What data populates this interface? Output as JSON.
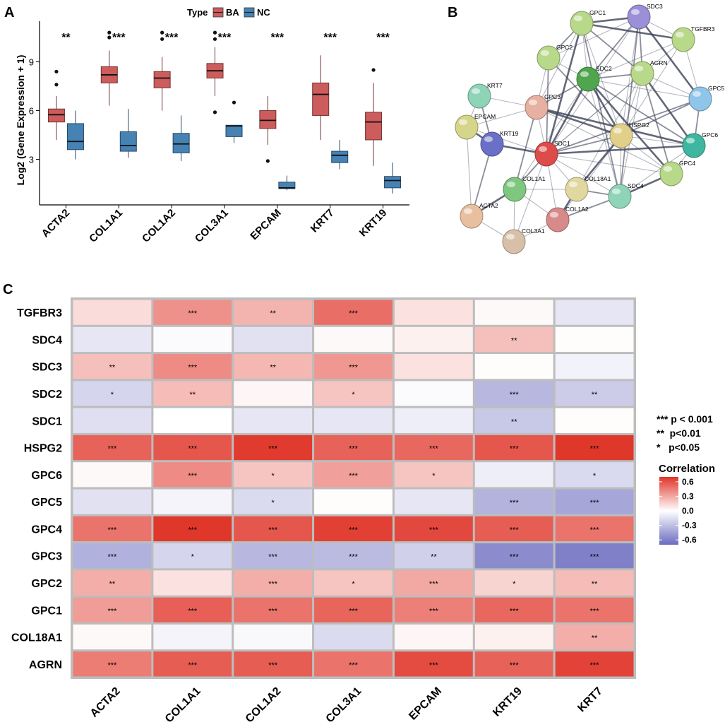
{
  "panels": {
    "a": "A",
    "b": "B",
    "c": "C"
  },
  "chart_data": [
    {
      "type": "boxplot",
      "panel": "A",
      "ylabel": "Log2 (Gene Expression + 1)",
      "ylim": [
        0.2,
        11.5
      ],
      "yticks": [
        3,
        6,
        9
      ],
      "legend": {
        "title": "Type",
        "items": [
          {
            "name": "BA",
            "color": "#cd5c5c"
          },
          {
            "name": "NC",
            "color": "#4682b4"
          }
        ]
      },
      "categories": [
        "ACTA2",
        "COL1A1",
        "COL1A2",
        "COL3A1",
        "EPCAM",
        "KRT7",
        "KRT19"
      ],
      "significance": [
        "**",
        "***",
        "***",
        "***",
        "***",
        "***",
        "***"
      ],
      "series": [
        {
          "name": "BA",
          "boxes": [
            {
              "min": 4.2,
              "q1": 5.3,
              "median": 5.75,
              "q3": 6.1,
              "max": 6.9,
              "outliers": [
                7.6,
                8.4
              ]
            },
            {
              "min": 6.3,
              "q1": 7.7,
              "median": 8.2,
              "q3": 8.7,
              "max": 9.7,
              "outliers": [
                10.5,
                10.8
              ]
            },
            {
              "min": 6.0,
              "q1": 7.4,
              "median": 8.0,
              "q3": 8.4,
              "max": 9.3,
              "outliers": [
                10.4,
                10.8
              ]
            },
            {
              "min": 6.9,
              "q1": 8.0,
              "median": 8.45,
              "q3": 8.9,
              "max": 9.9,
              "outliers": [
                5.9,
                10.4,
                10.8
              ]
            },
            {
              "min": 3.9,
              "q1": 4.9,
              "median": 5.4,
              "q3": 6.0,
              "max": 6.9,
              "outliers": [
                2.9
              ]
            },
            {
              "min": 4.2,
              "q1": 5.7,
              "median": 7.0,
              "q3": 7.7,
              "max": 9.4,
              "outliers": []
            },
            {
              "min": 2.6,
              "q1": 4.2,
              "median": 5.3,
              "q3": 5.9,
              "max": 7.7,
              "outliers": [
                8.5
              ]
            }
          ]
        },
        {
          "name": "NC",
          "boxes": [
            {
              "min": 3.0,
              "q1": 3.6,
              "median": 4.1,
              "q3": 5.2,
              "max": 6.0,
              "outliers": []
            },
            {
              "min": 3.1,
              "q1": 3.5,
              "median": 3.85,
              "q3": 4.7,
              "max": 6.1,
              "outliers": []
            },
            {
              "min": 2.9,
              "q1": 3.4,
              "median": 3.95,
              "q3": 4.6,
              "max": 5.7,
              "outliers": []
            },
            {
              "min": 4.0,
              "q1": 4.4,
              "median": 5.05,
              "q3": 5.1,
              "max": 5.1,
              "outliers": [
                6.5
              ]
            },
            {
              "min": 1.1,
              "q1": 1.2,
              "median": 1.25,
              "q3": 1.6,
              "max": 2.0,
              "outliers": []
            },
            {
              "min": 2.4,
              "q1": 2.8,
              "median": 3.25,
              "q3": 3.5,
              "max": 4.2,
              "outliers": []
            },
            {
              "min": 0.9,
              "q1": 1.25,
              "median": 1.7,
              "q3": 1.95,
              "max": 2.8,
              "outliers": []
            }
          ]
        }
      ]
    },
    {
      "type": "network",
      "panel": "B",
      "nodes": [
        {
          "id": "SDC3",
          "color": "#9b8fd8"
        },
        {
          "id": "GPC1",
          "color": "#b8d98a"
        },
        {
          "id": "TGFBR3",
          "color": "#b8d98a"
        },
        {
          "id": "GPC2",
          "color": "#b8d98a"
        },
        {
          "id": "SDC2",
          "color": "#4fa64f"
        },
        {
          "id": "AGRN",
          "color": "#b8d98a"
        },
        {
          "id": "GPC5",
          "color": "#8fc5e8"
        },
        {
          "id": "KRT7",
          "color": "#8fd3b8"
        },
        {
          "id": "GPC3",
          "color": "#e8b0a0"
        },
        {
          "id": "EPCAM",
          "color": "#d6d68a"
        },
        {
          "id": "HSPG2",
          "color": "#e0d08a"
        },
        {
          "id": "GPC6",
          "color": "#3fb6a0"
        },
        {
          "id": "KRT19",
          "color": "#6a70c8"
        },
        {
          "id": "SDC1",
          "color": "#dd4b4b"
        },
        {
          "id": "GPC4",
          "color": "#b8d98a"
        },
        {
          "id": "COL1A1",
          "color": "#7fc67f"
        },
        {
          "id": "COL18A1",
          "color": "#e0d8a0"
        },
        {
          "id": "SDC4",
          "color": "#8fd3b8"
        },
        {
          "id": "ACTA2",
          "color": "#e8c0a0"
        },
        {
          "id": "COL1A2",
          "color": "#d88a8a"
        },
        {
          "id": "COL3A1",
          "color": "#d8c0a8"
        }
      ],
      "edges": [
        [
          "SDC1",
          "SDC2"
        ],
        [
          "SDC1",
          "SDC3"
        ],
        [
          "SDC1",
          "SDC4"
        ],
        [
          "SDC1",
          "HSPG2"
        ],
        [
          "SDC1",
          "AGRN"
        ],
        [
          "SDC1",
          "GPC1"
        ],
        [
          "SDC1",
          "GPC2"
        ],
        [
          "SDC1",
          "GPC3"
        ],
        [
          "SDC1",
          "GPC4"
        ],
        [
          "SDC1",
          "GPC5"
        ],
        [
          "SDC1",
          "GPC6"
        ],
        [
          "SDC1",
          "TGFBR3"
        ],
        [
          "SDC1",
          "COL1A1"
        ],
        [
          "SDC1",
          "COL1A2"
        ],
        [
          "SDC1",
          "COL18A1"
        ],
        [
          "SDC1",
          "KRT19"
        ],
        [
          "SDC1",
          "EPCAM"
        ],
        [
          "SDC1",
          "COL3A1"
        ],
        [
          "SDC2",
          "SDC3"
        ],
        [
          "SDC2",
          "SDC4"
        ],
        [
          "SDC2",
          "HSPG2"
        ],
        [
          "SDC2",
          "AGRN"
        ],
        [
          "SDC2",
          "GPC1"
        ],
        [
          "SDC2",
          "GPC2"
        ],
        [
          "SDC2",
          "GPC3"
        ],
        [
          "SDC2",
          "GPC4"
        ],
        [
          "SDC2",
          "GPC5"
        ],
        [
          "SDC2",
          "GPC6"
        ],
        [
          "SDC2",
          "TGFBR3"
        ],
        [
          "SDC2",
          "COL1A1"
        ],
        [
          "SDC3",
          "GPC1"
        ],
        [
          "SDC3",
          "GPC2"
        ],
        [
          "SDC3",
          "HSPG2"
        ],
        [
          "SDC3",
          "AGRN"
        ],
        [
          "SDC3",
          "TGFBR3"
        ],
        [
          "SDC3",
          "GPC5"
        ],
        [
          "SDC3",
          "SDC4"
        ],
        [
          "HSPG2",
          "AGRN"
        ],
        [
          "HSPG2",
          "GPC1"
        ],
        [
          "HSPG2",
          "GPC2"
        ],
        [
          "HSPG2",
          "GPC3"
        ],
        [
          "HSPG2",
          "GPC4"
        ],
        [
          "HSPG2",
          "GPC5"
        ],
        [
          "HSPG2",
          "GPC6"
        ],
        [
          "HSPG2",
          "SDC4"
        ],
        [
          "HSPG2",
          "COL18A1"
        ],
        [
          "HSPG2",
          "COL1A2"
        ],
        [
          "HSPG2",
          "TGFBR3"
        ],
        [
          "AGRN",
          "GPC1"
        ],
        [
          "AGRN",
          "GPC5"
        ],
        [
          "AGRN",
          "GPC6"
        ],
        [
          "AGRN",
          "GPC4"
        ],
        [
          "AGRN",
          "SDC4"
        ],
        [
          "AGRN",
          "COL18A1"
        ],
        [
          "GPC1",
          "GPC2"
        ],
        [
          "GPC1",
          "TGFBR3"
        ],
        [
          "GPC1",
          "GPC3"
        ],
        [
          "GPC1",
          "SDC4"
        ],
        [
          "GPC2",
          "GPC3"
        ],
        [
          "GPC3",
          "GPC4"
        ],
        [
          "GPC3",
          "GPC6"
        ],
        [
          "GPC3",
          "KRT7"
        ],
        [
          "GPC3",
          "EPCAM"
        ],
        [
          "GPC3",
          "COL1A1"
        ],
        [
          "GPC4",
          "GPC6"
        ],
        [
          "GPC4",
          "SDC4"
        ],
        [
          "GPC5",
          "GPC6"
        ],
        [
          "GPC6",
          "SDC4"
        ],
        [
          "TGFBR3",
          "GPC5"
        ],
        [
          "COL18A1",
          "SDC4"
        ],
        [
          "COL18A1",
          "COL1A2"
        ],
        [
          "COL18A1",
          "COL1A1"
        ],
        [
          "SDC4",
          "COL1A2"
        ],
        [
          "COL1A1",
          "COL1A2"
        ],
        [
          "COL1A1",
          "COL3A1"
        ],
        [
          "COL1A1",
          "ACTA2"
        ],
        [
          "COL1A2",
          "COL3A1"
        ],
        [
          "COL3A1",
          "ACTA2"
        ],
        [
          "KRT7",
          "KRT19"
        ],
        [
          "KRT7",
          "EPCAM"
        ],
        [
          "KRT19",
          "EPCAM"
        ],
        [
          "KRT19",
          "ACTA2"
        ],
        [
          "EPCAM",
          "ACTA2"
        ]
      ]
    },
    {
      "type": "heatmap",
      "panel": "C",
      "rows": [
        "TGFBR3",
        "SDC4",
        "SDC3",
        "SDC2",
        "SDC1",
        "HSPG2",
        "GPC6",
        "GPC5",
        "GPC4",
        "GPC3",
        "GPC2",
        "GPC1",
        "COL18A1",
        "AGRN"
      ],
      "columns": [
        "ACTA2",
        "COL1A1",
        "COL1A2",
        "COL3A1",
        "EPCAM",
        "KRT19",
        "KRT7"
      ],
      "values": [
        [
          0.12,
          0.38,
          0.26,
          0.5,
          0.1,
          0.02,
          -0.12
        ],
        [
          -0.12,
          -0.02,
          -0.14,
          0.02,
          0.05,
          0.22,
          0.01
        ],
        [
          0.22,
          0.4,
          0.25,
          0.36,
          0.1,
          0.01,
          -0.06
        ],
        [
          -0.2,
          0.23,
          0.03,
          0.2,
          -0.02,
          -0.34,
          -0.24
        ],
        [
          -0.15,
          0.0,
          -0.12,
          -0.12,
          -0.08,
          -0.26,
          0.01
        ],
        [
          0.54,
          0.58,
          0.68,
          0.54,
          0.52,
          0.58,
          0.69
        ],
        [
          0.02,
          0.4,
          0.2,
          0.33,
          0.2,
          -0.08,
          -0.18
        ],
        [
          -0.14,
          -0.05,
          -0.17,
          0.01,
          -0.12,
          -0.36,
          -0.42
        ],
        [
          0.48,
          0.69,
          0.58,
          0.66,
          0.63,
          0.56,
          0.48
        ],
        [
          -0.37,
          -0.2,
          -0.34,
          -0.32,
          -0.22,
          -0.55,
          -0.6
        ],
        [
          0.28,
          0.1,
          0.28,
          0.2,
          0.3,
          0.15,
          0.23
        ],
        [
          0.34,
          0.55,
          0.48,
          0.53,
          0.44,
          0.52,
          0.48
        ],
        [
          0.02,
          -0.05,
          -0.03,
          -0.17,
          0.03,
          0.05,
          0.28
        ],
        [
          0.45,
          0.56,
          0.56,
          0.48,
          0.62,
          0.54,
          0.65
        ]
      ],
      "stars": [
        [
          "",
          "***",
          "**",
          "***",
          "",
          "",
          ""
        ],
        [
          "",
          "",
          "",
          "",
          "",
          "**",
          ""
        ],
        [
          "**",
          "***",
          "**",
          "***",
          "",
          "",
          ""
        ],
        [
          "*",
          "**",
          "",
          "*",
          "",
          "***",
          "**"
        ],
        [
          "",
          "",
          "",
          "",
          "",
          "**",
          ""
        ],
        [
          "***",
          "***",
          "***",
          "***",
          "***",
          "***",
          "***"
        ],
        [
          "",
          "***",
          "*",
          "***",
          "*",
          "",
          "*"
        ],
        [
          "",
          "",
          "*",
          "",
          "",
          "***",
          "***"
        ],
        [
          "***",
          "***",
          "***",
          "***",
          "***",
          "***",
          "***"
        ],
        [
          "***",
          "*",
          "***",
          "***",
          "**",
          "***",
          "***"
        ],
        [
          "**",
          "",
          "***",
          "*",
          "***",
          "*",
          "**"
        ],
        [
          "***",
          "***",
          "***",
          "***",
          "***",
          "***",
          "***"
        ],
        [
          "",
          "",
          "",
          "",
          "",
          "",
          "**"
        ],
        [
          "***",
          "***",
          "***",
          "***",
          "***",
          "***",
          "***"
        ]
      ],
      "colorbar": {
        "title": "Correlation",
        "range": [
          -0.7,
          0.7
        ],
        "ticks": [
          "0.6",
          "0.3",
          "0.0",
          "-0.3",
          "-0.6"
        ],
        "tick_values": [
          0.6,
          0.3,
          0.0,
          -0.3,
          -0.6
        ],
        "low_color": "#6b6bbf",
        "mid_color": "#ffffff",
        "high_color": "#e03428"
      },
      "significance_legend": [
        "*** p < 0.001",
        "**  p<0.01",
        "*   p<0.05"
      ]
    }
  ]
}
